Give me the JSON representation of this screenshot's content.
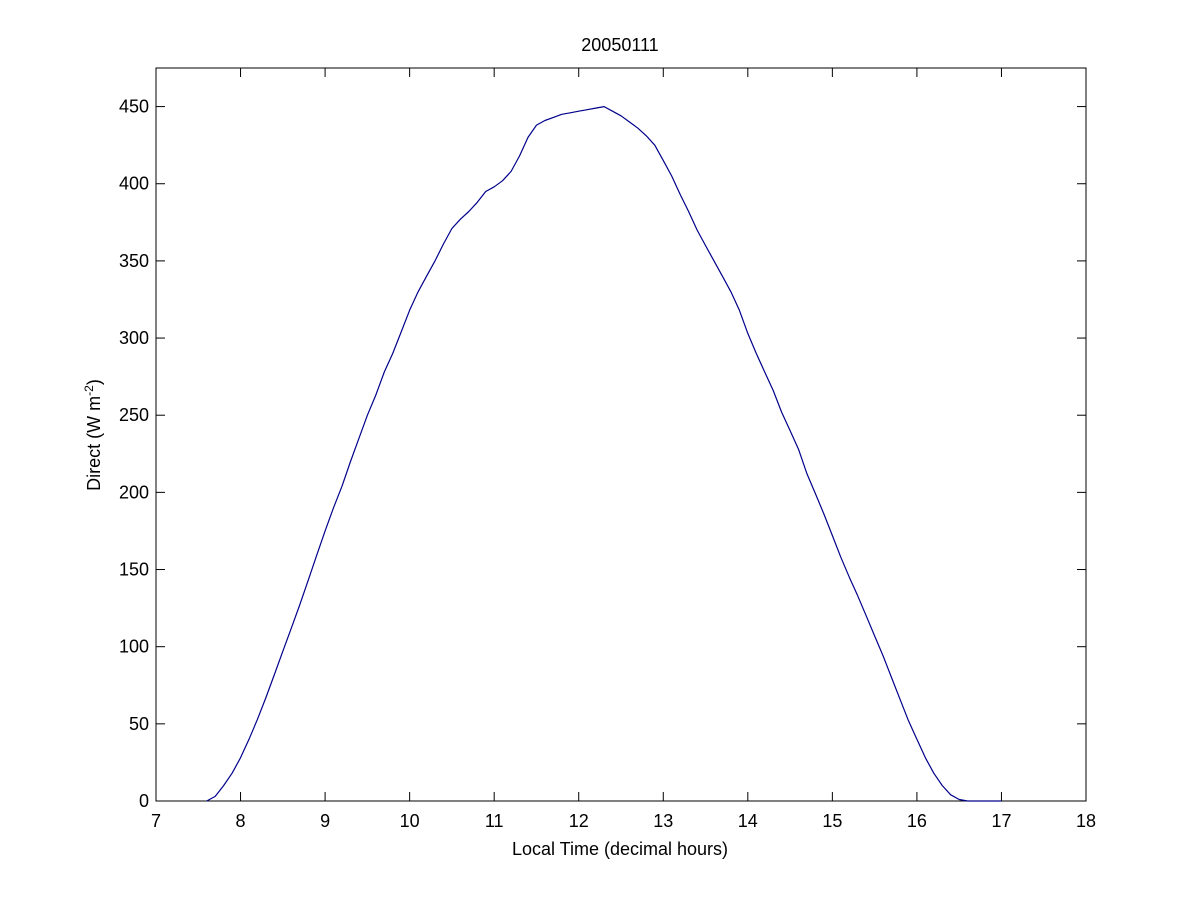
{
  "chart_data": {
    "type": "line",
    "title": "20050111",
    "xlabel": "Local Time (decimal hours)",
    "ylabel": {
      "prefix": "Direct (W m",
      "superscript": "-2",
      "suffix": ")"
    },
    "xlim": [
      7,
      18
    ],
    "ylim": [
      0,
      475
    ],
    "xticks": [
      7,
      8,
      9,
      10,
      11,
      12,
      13,
      14,
      15,
      16,
      17,
      18
    ],
    "xtick_labels": [
      "7",
      "8",
      "9",
      "10",
      "11",
      "12",
      "13",
      "14",
      "15",
      "16",
      "17",
      "18"
    ],
    "yticks": [
      0,
      50,
      100,
      150,
      200,
      250,
      300,
      350,
      400,
      450
    ],
    "ytick_labels": [
      "0",
      "50",
      "100",
      "150",
      "200",
      "250",
      "300",
      "350",
      "400",
      "450"
    ],
    "grid": false,
    "box": true,
    "series": [
      {
        "color": "#00008b",
        "x": [
          7.6,
          7.7,
          7.8,
          7.9,
          8.0,
          8.1,
          8.2,
          8.3,
          8.4,
          8.5,
          8.6,
          8.7,
          8.8,
          8.9,
          9.0,
          9.1,
          9.2,
          9.3,
          9.4,
          9.5,
          9.6,
          9.7,
          9.8,
          9.9,
          10.0,
          10.1,
          10.2,
          10.3,
          10.4,
          10.5,
          10.6,
          10.7,
          10.8,
          10.9,
          11.0,
          11.1,
          11.2,
          11.3,
          11.4,
          11.5,
          11.6,
          11.7,
          11.8,
          11.9,
          12.0,
          12.1,
          12.2,
          12.3,
          12.4,
          12.5,
          12.6,
          12.7,
          12.8,
          12.9,
          13.0,
          13.1,
          13.2,
          13.3,
          13.4,
          13.5,
          13.6,
          13.7,
          13.8,
          13.9,
          14.0,
          14.1,
          14.2,
          14.3,
          14.4,
          14.5,
          14.6,
          14.7,
          14.8,
          14.9,
          15.0,
          15.1,
          15.2,
          15.3,
          15.4,
          15.5,
          15.6,
          15.7,
          15.8,
          15.9,
          16.0,
          16.1,
          16.2,
          16.3,
          16.4,
          16.5,
          16.6,
          16.7,
          16.8,
          16.9,
          17.0
        ],
        "y": [
          0,
          3,
          10,
          18,
          28,
          40,
          53,
          67,
          82,
          97,
          112,
          127,
          143,
          159,
          175,
          190,
          204,
          220,
          235,
          250,
          263,
          278,
          290,
          304,
          318,
          330,
          340,
          350,
          361,
          371,
          377,
          382,
          388,
          395,
          398,
          402,
          408,
          418,
          430,
          438,
          441,
          443,
          445,
          446,
          447,
          448,
          449,
          450,
          447,
          444,
          440,
          436,
          431,
          425,
          415,
          405,
          393,
          382,
          370,
          360,
          350,
          340,
          330,
          318,
          303,
          290,
          278,
          266,
          252,
          240,
          228,
          212,
          199,
          186,
          172,
          158,
          145,
          133,
          120,
          107,
          94,
          80,
          66,
          52,
          40,
          28,
          18,
          10,
          4,
          1,
          0,
          0,
          0,
          0,
          0
        ]
      }
    ]
  }
}
